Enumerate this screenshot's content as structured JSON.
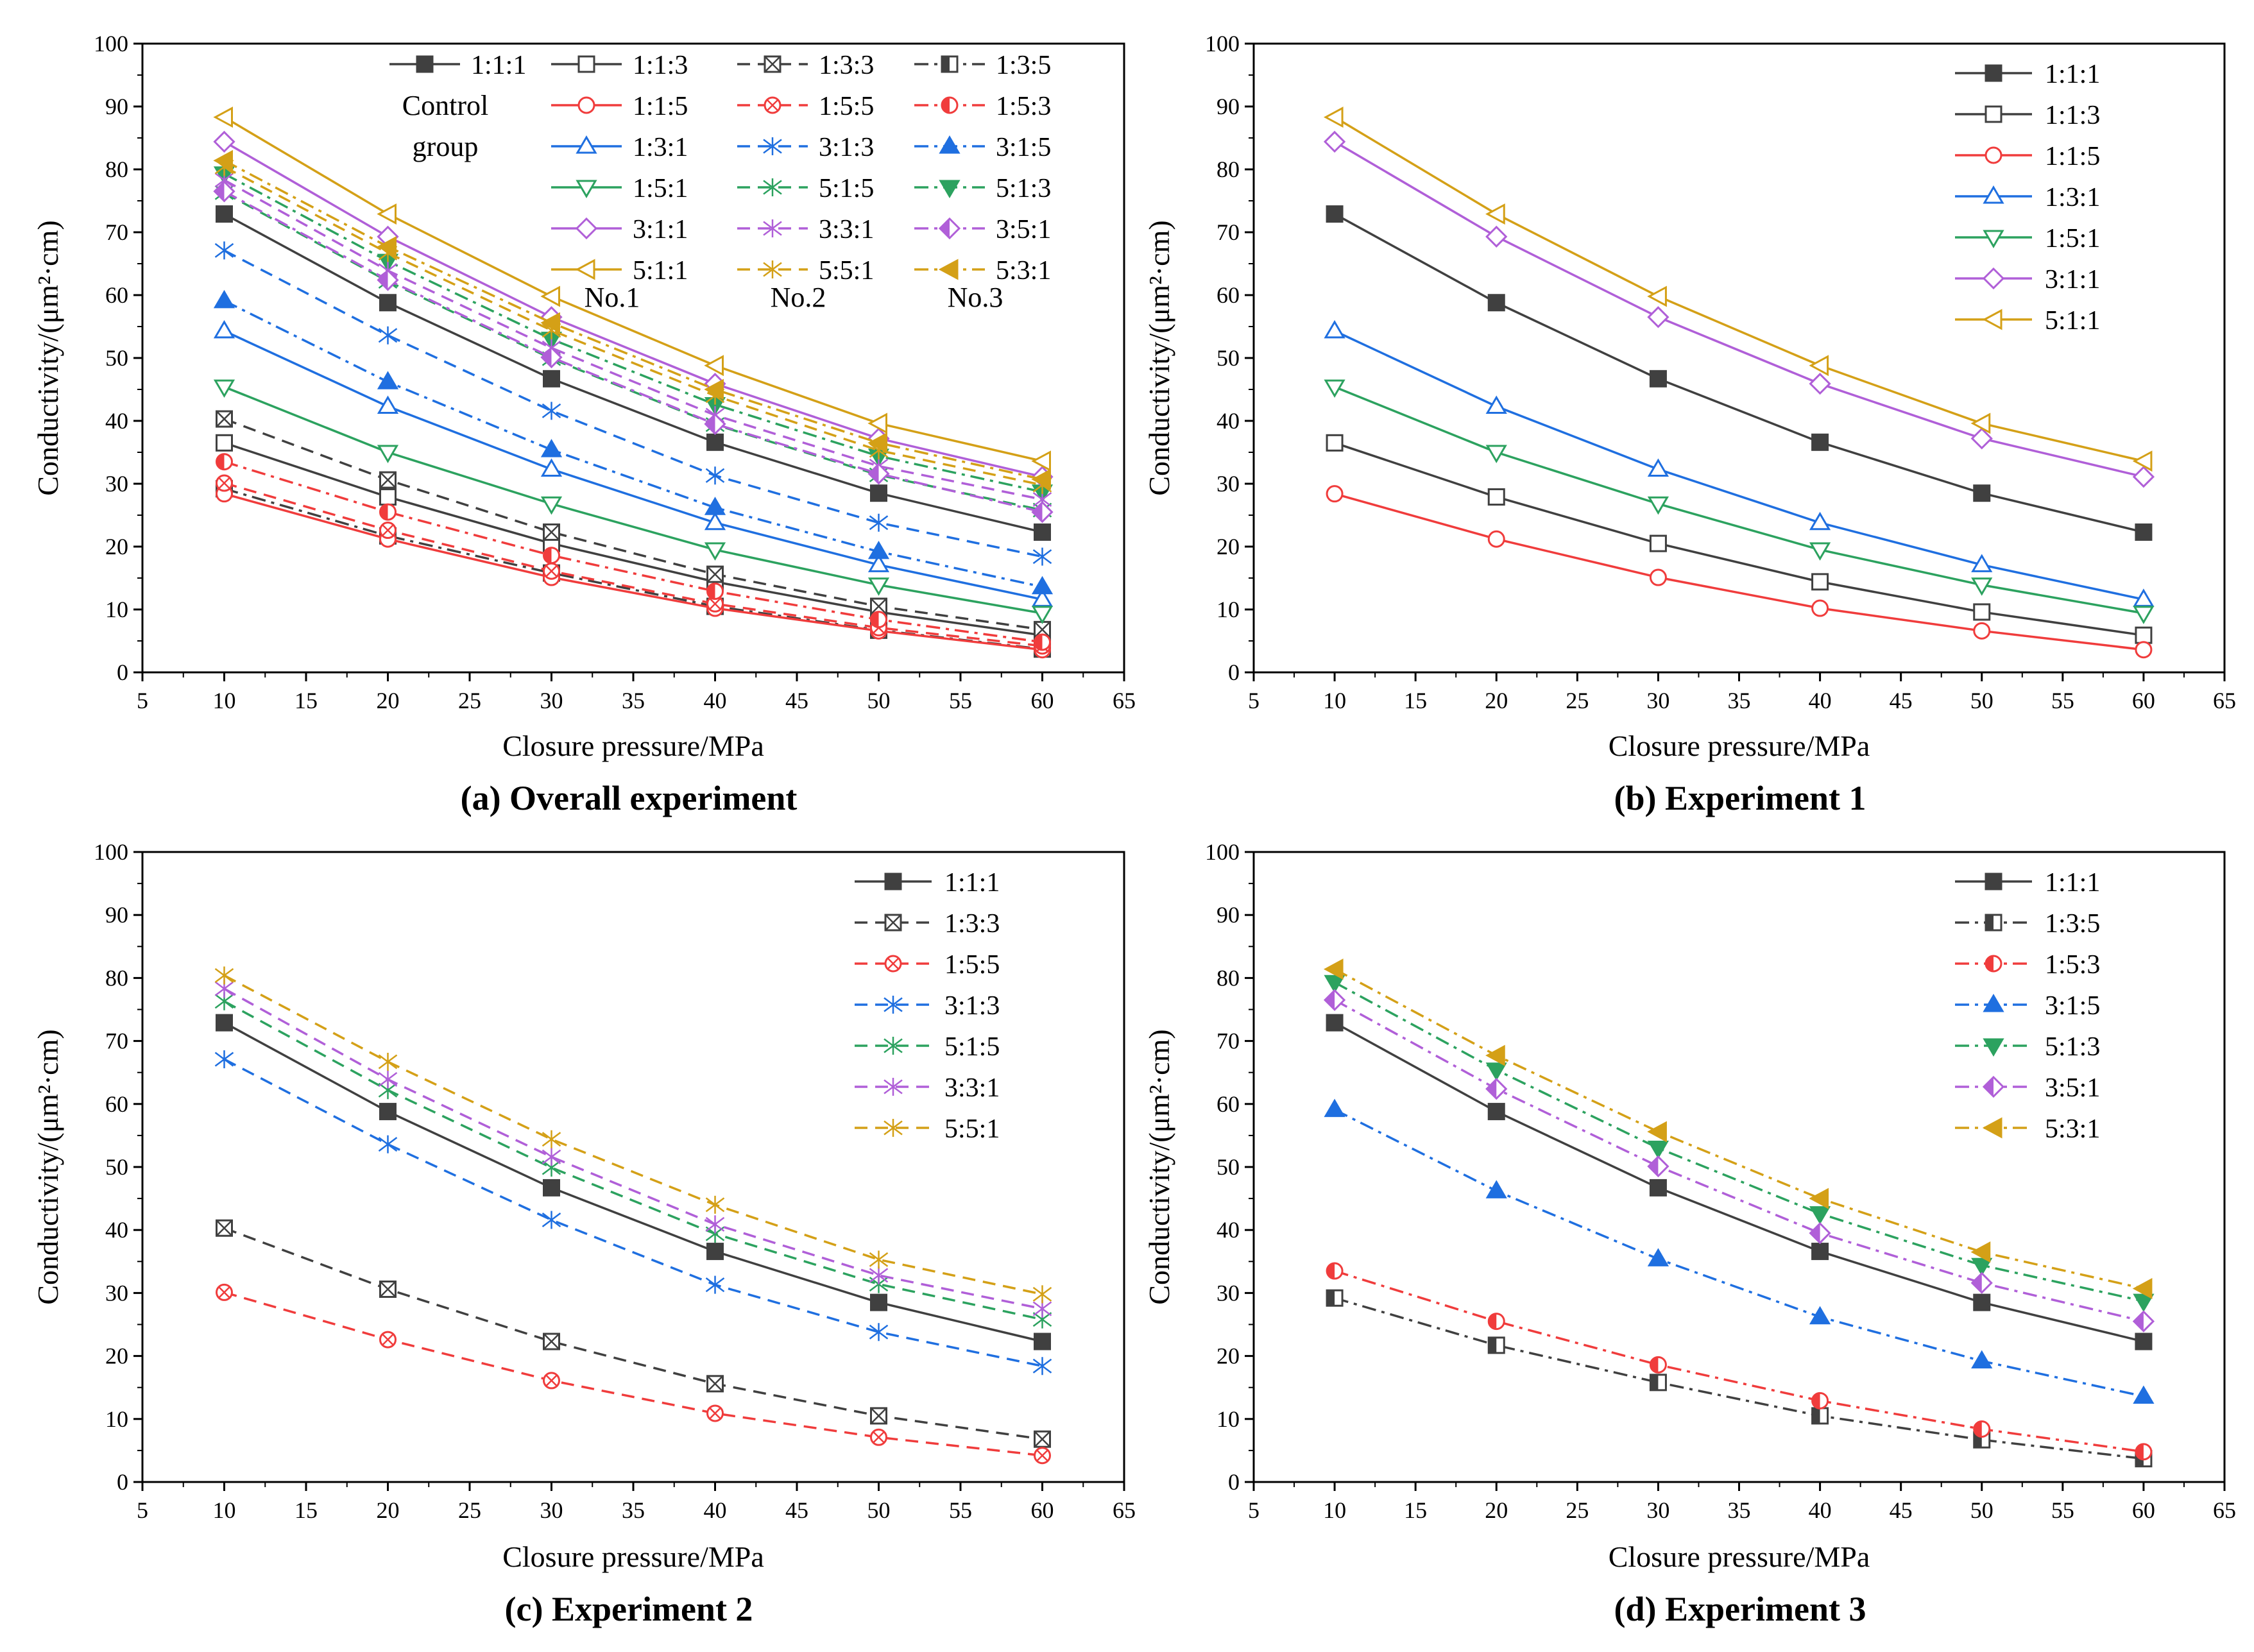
{
  "series_style": {
    "1:1:1": {
      "color": "#404040",
      "marker": "square-filled",
      "dash": "solid"
    },
    "1:1:3": {
      "color": "#404040",
      "marker": "square-open",
      "dash": "solid"
    },
    "1:3:3": {
      "color": "#404040",
      "marker": "square-x",
      "dash": "dash"
    },
    "1:3:5": {
      "color": "#404040",
      "marker": "square-half",
      "dash": "dashdot"
    },
    "1:1:5": {
      "color": "#f03c3c",
      "marker": "circle-open",
      "dash": "solid"
    },
    "1:5:5": {
      "color": "#f03c3c",
      "marker": "circle-x",
      "dash": "dash"
    },
    "1:5:3": {
      "color": "#f03c3c",
      "marker": "circle-half",
      "dash": "dashdot"
    },
    "1:3:1": {
      "color": "#1f6fe0",
      "marker": "triangle-up-open",
      "dash": "solid"
    },
    "3:1:3": {
      "color": "#1f6fe0",
      "marker": "asterisk",
      "dash": "dash"
    },
    "3:1:5": {
      "color": "#1f6fe0",
      "marker": "triangle-up-half",
      "dash": "dashdot"
    },
    "1:5:1": {
      "color": "#2ca25f",
      "marker": "triangle-down-open",
      "dash": "solid"
    },
    "5:1:5": {
      "color": "#2ca25f",
      "marker": "asterisk",
      "dash": "dash"
    },
    "5:1:3": {
      "color": "#2ca25f",
      "marker": "triangle-down-half",
      "dash": "dashdot"
    },
    "3:1:1": {
      "color": "#b05fd8",
      "marker": "diamond-open",
      "dash": "solid"
    },
    "3:3:1": {
      "color": "#b05fd8",
      "marker": "asterisk",
      "dash": "dash"
    },
    "3:5:1": {
      "color": "#b05fd8",
      "marker": "diamond-half",
      "dash": "dashdot"
    },
    "5:1:1": {
      "color": "#d4a017",
      "marker": "triangle-left-open",
      "dash": "solid"
    },
    "5:5:1": {
      "color": "#d4a017",
      "marker": "asterisk",
      "dash": "dash"
    },
    "5:3:1": {
      "color": "#d4a017",
      "marker": "triangle-left-half",
      "dash": "dashdot"
    }
  },
  "overall_legend": {
    "items": [
      "1:1:1",
      "1:1:3",
      "1:3:3",
      "1:3:5",
      "1:1:5",
      "1:5:5",
      "1:5:3",
      "1:3:1",
      "3:1:3",
      "3:1:5",
      "1:5:1",
      "5:1:5",
      "5:1:3",
      "3:1:1",
      "3:3:1",
      "3:5:1",
      "5:1:1",
      "5:5:1",
      "5:3:1"
    ],
    "control_group_line1": "Control",
    "control_group_line2": "group",
    "group_labels": [
      "No.1",
      "No.2",
      "No.3"
    ]
  },
  "chart_data": [
    {
      "type": "line",
      "caption": "(a) Overall experiment",
      "xlabel": "Closure pressure/MPa",
      "ylabel": "Conductivity/(μm²·cm)",
      "xlim": [
        5,
        65
      ],
      "ylim": [
        0,
        100
      ],
      "xticks": [
        5,
        10,
        15,
        20,
        25,
        30,
        35,
        40,
        45,
        50,
        55,
        60,
        65
      ],
      "yticks": [
        0,
        10,
        20,
        30,
        40,
        50,
        60,
        70,
        80,
        90,
        100
      ],
      "legend": "overall",
      "x": [
        10,
        20,
        30,
        40,
        50,
        60
      ],
      "series": [
        {
          "name": "1:1:1",
          "values": [
            72.9,
            58.8,
            46.7,
            36.6,
            28.5,
            22.3
          ]
        },
        {
          "name": "1:1:3",
          "values": [
            36.5,
            27.9,
            20.5,
            14.4,
            9.6,
            5.9
          ]
        },
        {
          "name": "1:3:3",
          "values": [
            40.3,
            30.6,
            22.3,
            15.6,
            10.5,
            6.8
          ]
        },
        {
          "name": "1:3:5",
          "values": [
            29.2,
            21.7,
            15.8,
            10.5,
            6.7,
            3.7
          ]
        },
        {
          "name": "1:1:5",
          "values": [
            28.4,
            21.2,
            15.1,
            10.2,
            6.6,
            3.6
          ]
        },
        {
          "name": "1:5:5",
          "values": [
            30.1,
            22.6,
            16.1,
            10.9,
            7.1,
            4.2
          ]
        },
        {
          "name": "1:5:3",
          "values": [
            33.5,
            25.5,
            18.6,
            12.9,
            8.4,
            4.8
          ]
        },
        {
          "name": "1:3:1",
          "values": [
            54.3,
            42.3,
            32.3,
            23.8,
            17.1,
            11.6
          ]
        },
        {
          "name": "3:1:3",
          "values": [
            67.1,
            53.6,
            41.6,
            31.3,
            23.8,
            18.4
          ]
        },
        {
          "name": "3:1:5",
          "values": [
            59.1,
            46.2,
            35.4,
            26.2,
            19.2,
            13.6
          ]
        },
        {
          "name": "1:5:1",
          "values": [
            45.4,
            35.0,
            26.8,
            19.5,
            13.9,
            9.4
          ]
        },
        {
          "name": "5:1:5",
          "values": [
            76.3,
            62.2,
            49.9,
            39.4,
            31.4,
            25.8
          ]
        },
        {
          "name": "5:1:3",
          "values": [
            79.3,
            65.4,
            53.0,
            42.6,
            34.4,
            28.7
          ]
        },
        {
          "name": "3:1:1",
          "values": [
            84.4,
            69.3,
            56.5,
            45.9,
            37.2,
            31.1
          ]
        },
        {
          "name": "3:3:1",
          "values": [
            78.3,
            63.9,
            51.6,
            40.9,
            32.8,
            27.5
          ]
        },
        {
          "name": "3:5:1",
          "values": [
            76.5,
            62.4,
            50.1,
            39.5,
            31.6,
            25.5
          ]
        },
        {
          "name": "5:1:1",
          "values": [
            88.3,
            72.9,
            59.8,
            48.8,
            39.6,
            33.6
          ]
        },
        {
          "name": "5:5:1",
          "values": [
            80.4,
            66.7,
            54.4,
            44.0,
            35.3,
            29.8
          ]
        },
        {
          "name": "5:3:1",
          "values": [
            81.4,
            67.7,
            55.6,
            45.0,
            36.5,
            30.7
          ]
        }
      ]
    },
    {
      "type": "line",
      "caption": "(b) Experiment 1",
      "xlabel": "Closure pressure/MPa",
      "ylabel": "Conductivity/(μm²·cm)",
      "xlim": [
        5,
        65
      ],
      "ylim": [
        0,
        100
      ],
      "xticks": [
        5,
        10,
        15,
        20,
        25,
        30,
        35,
        40,
        45,
        50,
        55,
        60,
        65
      ],
      "yticks": [
        0,
        10,
        20,
        30,
        40,
        50,
        60,
        70,
        80,
        90,
        100
      ],
      "legend": "simple",
      "x": [
        10,
        20,
        30,
        40,
        50,
        60
      ],
      "series": [
        {
          "name": "1:1:1",
          "values": [
            72.9,
            58.8,
            46.7,
            36.6,
            28.5,
            22.3
          ]
        },
        {
          "name": "1:1:3",
          "values": [
            36.5,
            27.9,
            20.5,
            14.4,
            9.6,
            5.9
          ]
        },
        {
          "name": "1:1:5",
          "values": [
            28.4,
            21.2,
            15.1,
            10.2,
            6.6,
            3.6
          ]
        },
        {
          "name": "1:3:1",
          "values": [
            54.3,
            42.3,
            32.3,
            23.8,
            17.1,
            11.6
          ]
        },
        {
          "name": "1:5:1",
          "values": [
            45.4,
            35.0,
            26.8,
            19.5,
            13.9,
            9.4
          ]
        },
        {
          "name": "3:1:1",
          "values": [
            84.4,
            69.3,
            56.5,
            45.9,
            37.2,
            31.1
          ]
        },
        {
          "name": "5:1:1",
          "values": [
            88.3,
            72.9,
            59.8,
            48.8,
            39.6,
            33.6
          ]
        }
      ]
    },
    {
      "type": "line",
      "caption": "(c) Experiment 2",
      "xlabel": "Closure pressure/MPa",
      "ylabel": "Conductivity/(μm²·cm)",
      "xlim": [
        5,
        65
      ],
      "ylim": [
        0,
        100
      ],
      "xticks": [
        5,
        10,
        15,
        20,
        25,
        30,
        35,
        40,
        45,
        50,
        55,
        60,
        65
      ],
      "yticks": [
        0,
        10,
        20,
        30,
        40,
        50,
        60,
        70,
        80,
        90,
        100
      ],
      "legend": "simple",
      "x": [
        10,
        20,
        30,
        40,
        50,
        60
      ],
      "series": [
        {
          "name": "1:1:1",
          "values": [
            72.9,
            58.8,
            46.7,
            36.6,
            28.5,
            22.3
          ]
        },
        {
          "name": "1:3:3",
          "values": [
            40.3,
            30.6,
            22.3,
            15.6,
            10.5,
            6.8
          ]
        },
        {
          "name": "1:5:5",
          "values": [
            30.1,
            22.6,
            16.1,
            10.9,
            7.1,
            4.2
          ]
        },
        {
          "name": "3:1:3",
          "values": [
            67.1,
            53.6,
            41.6,
            31.3,
            23.8,
            18.4
          ]
        },
        {
          "name": "5:1:5",
          "values": [
            76.3,
            62.2,
            49.9,
            39.4,
            31.4,
            25.8
          ]
        },
        {
          "name": "3:3:1",
          "values": [
            78.3,
            63.9,
            51.6,
            40.9,
            32.8,
            27.5
          ]
        },
        {
          "name": "5:5:1",
          "values": [
            80.4,
            66.7,
            54.4,
            44.0,
            35.3,
            29.8
          ]
        }
      ]
    },
    {
      "type": "line",
      "caption": "(d) Experiment 3",
      "xlabel": "Closure pressure/MPa",
      "ylabel": "Conductivity/(μm²·cm)",
      "xlim": [
        5,
        65
      ],
      "ylim": [
        0,
        100
      ],
      "xticks": [
        5,
        10,
        15,
        20,
        25,
        30,
        35,
        40,
        45,
        50,
        55,
        60,
        65
      ],
      "yticks": [
        0,
        10,
        20,
        30,
        40,
        50,
        60,
        70,
        80,
        90,
        100
      ],
      "legend": "simple",
      "x": [
        10,
        20,
        30,
        40,
        50,
        60
      ],
      "series": [
        {
          "name": "1:1:1",
          "values": [
            72.9,
            58.8,
            46.7,
            36.6,
            28.5,
            22.3
          ]
        },
        {
          "name": "1:3:5",
          "values": [
            29.2,
            21.7,
            15.8,
            10.5,
            6.7,
            3.7
          ]
        },
        {
          "name": "1:5:3",
          "values": [
            33.5,
            25.5,
            18.6,
            12.9,
            8.4,
            4.8
          ]
        },
        {
          "name": "3:1:5",
          "values": [
            59.1,
            46.2,
            35.4,
            26.2,
            19.2,
            13.6
          ]
        },
        {
          "name": "5:1:3",
          "values": [
            79.3,
            65.4,
            53.0,
            42.6,
            34.4,
            28.7
          ]
        },
        {
          "name": "3:5:1",
          "values": [
            76.5,
            62.4,
            50.1,
            39.5,
            31.6,
            25.5
          ]
        },
        {
          "name": "5:3:1",
          "values": [
            81.4,
            67.7,
            55.6,
            45.0,
            36.5,
            30.7
          ]
        }
      ]
    }
  ]
}
